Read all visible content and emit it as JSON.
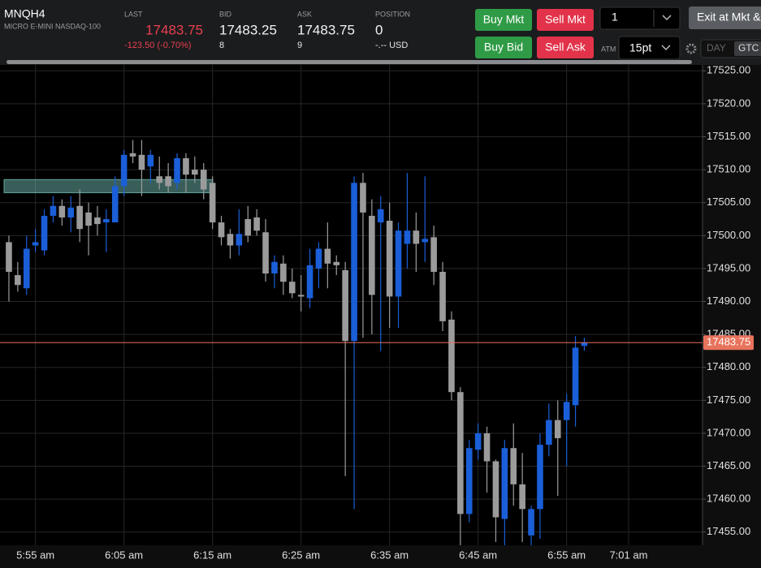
{
  "header": {
    "symbol": "MNQH4",
    "description": "MICRO E-MINI NASDAQ-100",
    "last": {
      "label": "LAST",
      "value": "17483.75",
      "change": "-123.50 (-0.70%)"
    },
    "bid": {
      "label": "BID",
      "value": "17483.25",
      "size": "8"
    },
    "ask": {
      "label": "ASK",
      "value": "17483.75",
      "size": "9"
    },
    "position": {
      "label": "POSITION",
      "value": "0",
      "pnl": "-.-- USD"
    }
  },
  "controls": {
    "buy_mkt": "Buy Mkt",
    "sell_mkt": "Sell Mkt",
    "buy_bid": "Buy Bid",
    "sell_ask": "Sell Ask",
    "quantity": "1",
    "exit": "Exit at Mkt &",
    "atm_label": "ATM",
    "atm": "15pt",
    "day": "DAY",
    "gtc": "GTC"
  },
  "chart_data": {
    "type": "candlestick",
    "categories": [
      null,
      null,
      null,
      "5:55 am",
      null,
      null,
      null,
      null,
      null,
      null,
      null,
      null,
      null,
      "6:05 am",
      null,
      null,
      null,
      null,
      null,
      null,
      null,
      null,
      null,
      "6:15 am",
      null,
      null,
      null,
      null,
      null,
      null,
      null,
      null,
      null,
      "6:25 am",
      null,
      null,
      null,
      null,
      null,
      null,
      null,
      null,
      null,
      "6:35 am",
      null,
      null,
      null,
      null,
      null,
      null,
      null,
      null,
      null,
      "6:45 am",
      null,
      null,
      null,
      null,
      null,
      null,
      null,
      null,
      null,
      "6:55 am",
      null,
      null,
      null,
      null,
      null,
      null,
      "7:01 am",
      null,
      null,
      null,
      null,
      null,
      null,
      null,
      null
    ],
    "open": [
      17499,
      17494,
      17492,
      17498.5,
      17497.75,
      17503,
      17504.5,
      17502.75,
      17504.5,
      17503.5,
      17502.75,
      17502,
      17502,
      17507.5,
      17512.5,
      17512.25,
      17510.5,
      17509,
      17509,
      17508,
      17511.75,
      17510,
      17510,
      17508,
      17502,
      17500.25,
      17498.5,
      17502.5,
      17502.75,
      17500.5,
      17494.25,
      17495.75,
      17493,
      17491,
      17490.5,
      17495,
      17498,
      17496,
      17494.75,
      17484,
      17508,
      17503,
      17502,
      17502.25,
      17490.75,
      17498.75,
      17500.75,
      17499,
      17499.75,
      17494.5,
      17487.25,
      17476.25,
      17457.75,
      17467.5,
      17470,
      17465.75,
      17457,
      17467.75,
      17462.25,
      17454.5,
      17458.5,
      17468.25,
      17472,
      17472,
      17474.25,
      17483.25,
      null,
      null,
      null,
      null,
      null,
      null,
      null,
      null,
      null,
      null,
      null,
      null,
      null
    ],
    "high": [
      17500,
      17496,
      17500,
      17501,
      17504,
      17506,
      17505.5,
      17506,
      17507,
      17505,
      17504.5,
      17504,
      17509,
      17513,
      17514.5,
      17514.5,
      17513,
      17512,
      17511,
      17512.5,
      17512.5,
      17512,
      17511,
      17509,
      17503,
      17501,
      17504,
      17504.5,
      17504,
      17502.5,
      17497,
      17497,
      17495,
      17494,
      17498,
      17499,
      17502,
      17497,
      17496,
      17509,
      17509.5,
      17505.5,
      17506,
      17505,
      17502,
      17509.5,
      17503.5,
      17509,
      17501.5,
      17496,
      17488.5,
      17477,
      17469,
      17471.5,
      17471,
      17466,
      17469,
      17471.5,
      17467,
      17459,
      17470,
      17474.5,
      17475,
      17476,
      17484.75,
      17484.5,
      null,
      null,
      null,
      null,
      null,
      null,
      null,
      null,
      null,
      null,
      null,
      null,
      null
    ],
    "low": [
      17490,
      17491.5,
      17491,
      17497.5,
      17497,
      17502,
      17501.5,
      17500.5,
      17499,
      17497,
      17500,
      17497.5,
      17502,
      17506,
      17511,
      17506,
      17508,
      17507,
      17506.5,
      17507,
      17506.5,
      17508,
      17505.5,
      17501,
      17498.5,
      17496.5,
      17497,
      17499,
      17500,
      17493,
      17492,
      17491,
      17490.5,
      17488.5,
      17489,
      17492,
      17492,
      17494,
      17463.5,
      17458.5,
      17484.5,
      17485,
      17482.5,
      17486,
      17486,
      17495,
      17494.5,
      17496,
      17492.5,
      17485.5,
      17475,
      17453,
      17456.5,
      17466,
      17461,
      17453.5,
      17453,
      17459,
      17453.5,
      17453,
      17454,
      17466.5,
      17460.5,
      17465,
      17471,
      17482.5,
      null,
      null,
      null,
      null,
      null,
      null,
      null,
      null,
      null,
      null,
      null,
      null,
      null
    ],
    "close": [
      17494.5,
      17492.5,
      17498,
      17499,
      17503,
      17504.5,
      17502.75,
      17504.25,
      17501,
      17501.5,
      17501.75,
      17502.5,
      17507.5,
      17512.25,
      17512,
      17510,
      17512.25,
      17508,
      17507.5,
      17511.75,
      17509.25,
      17509.25,
      17507,
      17502,
      17499.75,
      17498.5,
      17500.25,
      17500,
      17500.75,
      17494.25,
      17496,
      17493,
      17491.25,
      17490.75,
      17495.5,
      17498,
      17495.75,
      17495.5,
      17484,
      17508,
      17503.5,
      17491,
      17504,
      17490.75,
      17500.75,
      17500.75,
      17498.75,
      17499.5,
      17494.5,
      17487,
      17476.25,
      17457.75,
      17467.75,
      17470,
      17465.75,
      17457.25,
      17467.75,
      17462.25,
      17458.5,
      17458.5,
      17468.25,
      17472,
      17469.25,
      17474.75,
      17483,
      17483.75,
      null,
      null,
      null,
      null,
      null,
      null,
      null,
      null,
      null,
      null,
      null,
      null,
      null
    ],
    "up_color": "#1a5fd8",
    "down_color": "#9b9b9b",
    "ylim": [
      17453,
      17525.9
    ],
    "yticks": [
      {
        "value": 17455,
        "label": "17455.00"
      },
      {
        "value": 17460,
        "label": "17460.00"
      },
      {
        "value": 17465,
        "label": "17465.00"
      },
      {
        "value": 17470,
        "label": "17470.00"
      },
      {
        "value": 17475,
        "label": "17475.00"
      },
      {
        "value": 17480,
        "label": "17480.00"
      },
      {
        "value": 17485,
        "label": "17485.00"
      },
      {
        "value": 17490,
        "label": "17490.00"
      },
      {
        "value": 17495,
        "label": "17495.00"
      },
      {
        "value": 17500,
        "label": "17500.00"
      },
      {
        "value": 17505,
        "label": "17505.00"
      },
      {
        "value": 17510,
        "label": "17510.00"
      },
      {
        "value": 17515,
        "label": "17515.00"
      },
      {
        "value": 17520,
        "label": "17520.00"
      },
      {
        "value": 17525,
        "label": "17525.00"
      }
    ],
    "last_price": 17483.75,
    "last_price_color": "#e8735c",
    "zone": {
      "low": 17506.5,
      "high": 17508.5,
      "color": "#7fd0c8"
    },
    "grid": true
  }
}
